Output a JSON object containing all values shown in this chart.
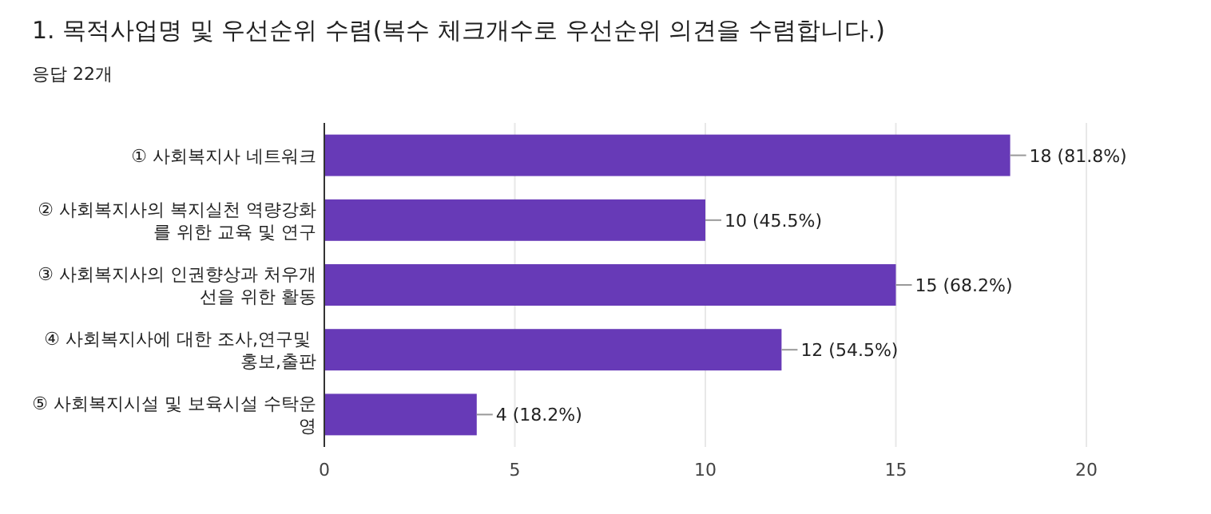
{
  "chart_data": {
    "type": "bar",
    "orientation": "horizontal",
    "title": "1. 목적사업명 및 우선순위 수렴(복수 체크개수로 우선순위 의견을 수렴합니다.)",
    "subtitle": "응답 22개",
    "categories": [
      "① 사회복지사 네트워크",
      "② 사회복지사의 복지실천 역량강화를 위한 교육 및 연구",
      "③ 사회복지사의 인권향상과 처우개선을 위한 활동",
      "④ 사회복지사에 대한 조사,연구및 홍보,출판",
      "⑤ 사회복지시설 및 보육시설 수탁운영"
    ],
    "values": [
      18,
      10,
      15,
      12,
      4
    ],
    "value_labels": [
      "18 (81.8%)",
      "10 (45.5%)",
      "15 (68.2%)",
      "12 (54.5%)",
      "4 (18.2%)"
    ],
    "color": "#673ab7",
    "xlim": [
      0,
      20
    ],
    "xticks": [
      0,
      5,
      10,
      15,
      20
    ],
    "grid": "x"
  }
}
